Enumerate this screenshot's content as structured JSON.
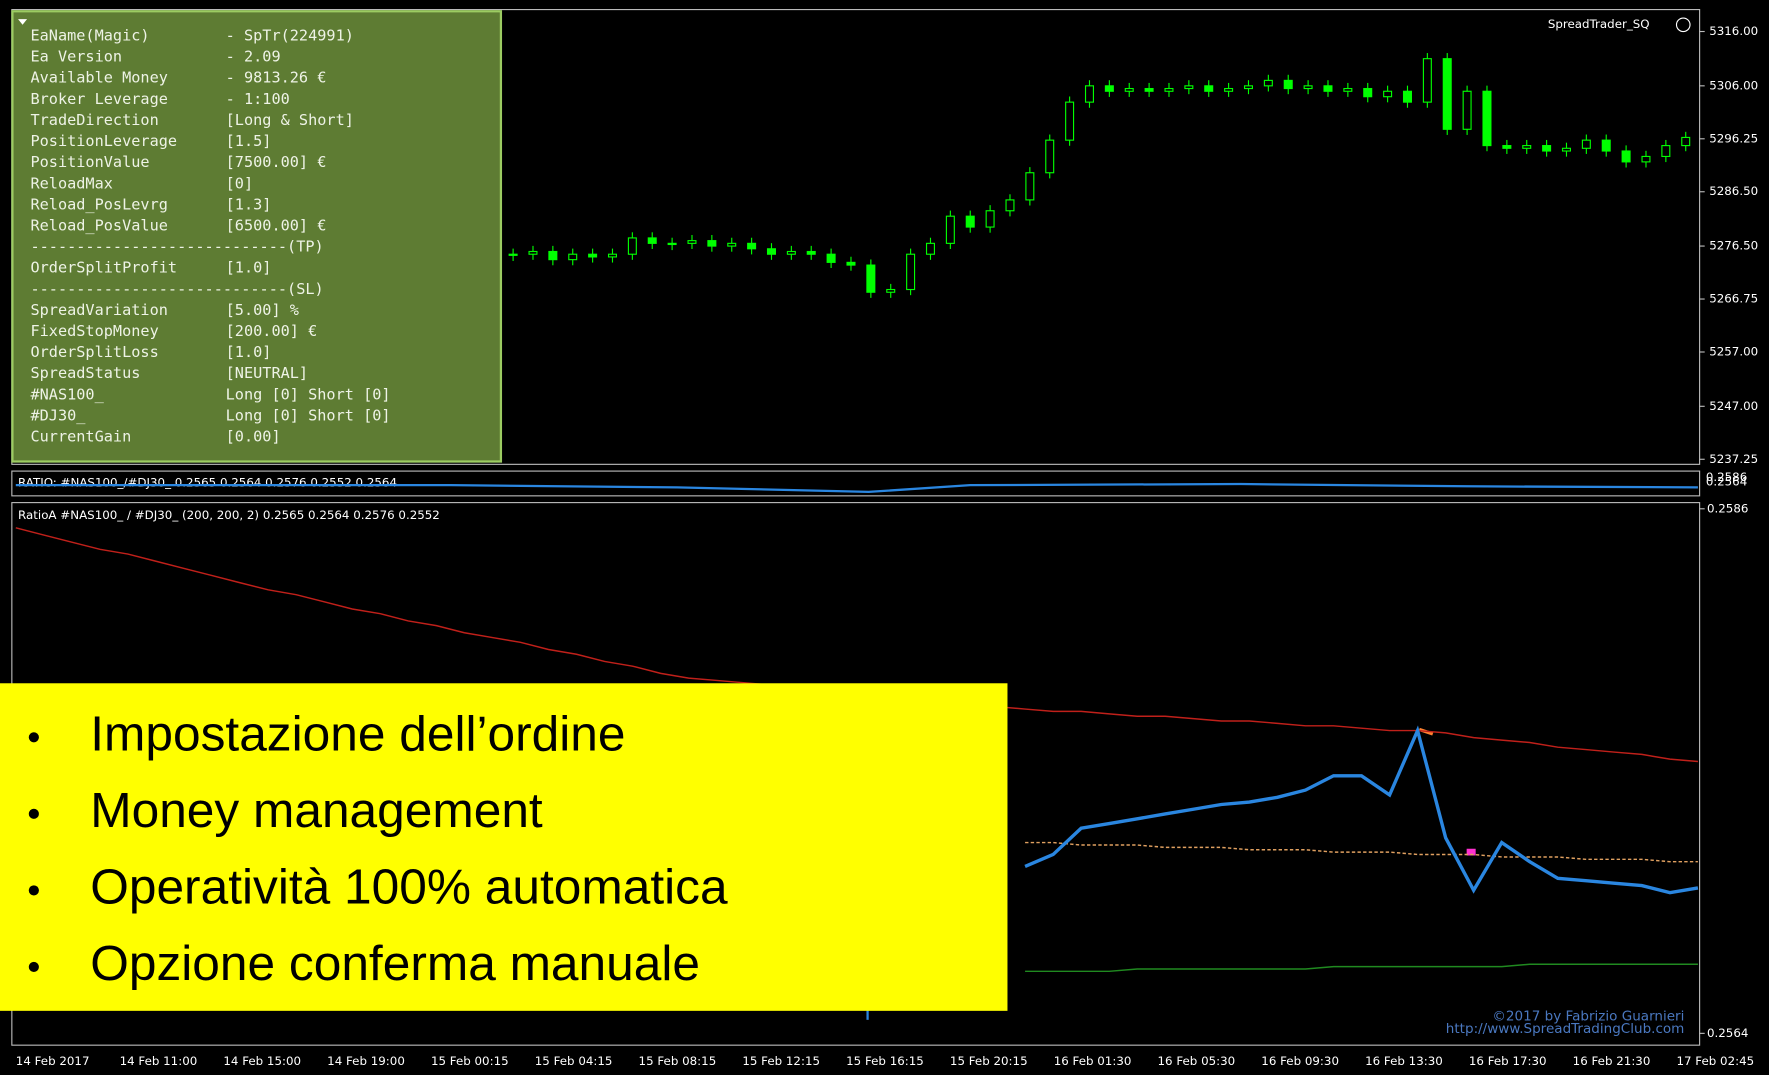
{
  "terminal": {
    "expert_label": "SpreadTrader_SQ",
    "info_panel": {
      "rows": [
        [
          "EaName(Magic)",
          "- SpTr(224991)"
        ],
        [
          "Ea Version",
          "- 2.09"
        ],
        [
          "Available Money",
          "- 9813.26 €"
        ],
        [
          "Broker Leverage",
          "- 1:100"
        ],
        [
          "TradeDirection",
          "[Long & Short]"
        ],
        [
          "PositionLeverage",
          "[1.5]"
        ],
        [
          "PositionValue",
          "[7500.00] €"
        ],
        [
          "ReloadMax",
          "[0]"
        ],
        [
          "Reload_PosLevrg",
          "[1.3]"
        ],
        [
          "Reload_PosValue",
          "[6500.00] €"
        ],
        [
          "----------------------------(TP)"
        ],
        [
          "OrderSplitProfit",
          "[1.0]"
        ],
        [
          "----------------------------(SL)"
        ],
        [
          "SpreadVariation",
          "[5.00] %"
        ],
        [
          "FixedStopMoney",
          "[200.00] €"
        ],
        [
          "OrderSplitLoss",
          "[1.0]"
        ],
        [
          "SpreadStatus",
          "[NEUTRAL]"
        ],
        [
          "#NAS100_",
          "Long [0]  Short [0]"
        ],
        [
          "#DJ30_",
          "Long [0]  Short [0]"
        ],
        [
          "CurrentGain",
          "[0.00]"
        ]
      ]
    },
    "price_chart": {
      "type": "candlestick",
      "ylim": [
        5237.25,
        5316
      ],
      "yticks": [
        {
          "value": 5316,
          "label": "5316.00"
        },
        {
          "value": 5306,
          "label": "5306.00"
        },
        {
          "value": 5296.25,
          "label": "5296.25"
        },
        {
          "value": 5286.5,
          "label": "5286.50"
        },
        {
          "value": 5276.5,
          "label": "5276.50"
        },
        {
          "value": 5266.75,
          "label": "5266.75"
        },
        {
          "value": 5257,
          "label": "5257.00"
        },
        {
          "value": 5247,
          "label": "5247.00"
        },
        {
          "value": 5237.25,
          "label": "5237.25"
        }
      ],
      "color": "#00ff00",
      "closes": [
        5275,
        5275.5,
        5274,
        5275,
        5274.5,
        5275,
        5278,
        5277,
        5277,
        5277.5,
        5276.5,
        5277,
        5276,
        5275,
        5275.5,
        5275,
        5273.5,
        5273,
        5268,
        5268.5,
        5275,
        5277,
        5282,
        5280,
        5283,
        5285,
        5290,
        5296,
        5303,
        5306,
        5305,
        5305.5,
        5305,
        5305.5,
        5306,
        5305,
        5305.5,
        5306,
        5307,
        5305.5,
        5306,
        5305,
        5305.5,
        5304,
        5305,
        5303,
        5311,
        5298,
        5305,
        5295,
        5294.5,
        5295,
        5294,
        5294.5,
        5296,
        5294,
        5292,
        5293,
        5295,
        5296.5
      ]
    },
    "ratio_strip": {
      "label": "RATIO: #NAS100_/#DJ30_ 0.2565 0.2564 0.2576 0.2552 0.2564",
      "yticks": [
        0.2586,
        0.2564
      ]
    },
    "ratio_chart": {
      "type": "line",
      "label": "RatioA #NAS100_ / #DJ30_ (200, 200, 2) 0.2565 0.2564 0.2576 0.2552",
      "ylim": [
        0.2564,
        0.2586
      ],
      "yticks": [
        0.2586,
        0.2564
      ],
      "series": [
        {
          "color": "#c0201a",
          "values": [
            0.25852,
            0.25849,
            0.25846,
            0.25843,
            0.25841,
            0.25838,
            0.25835,
            0.25832,
            0.25829,
            0.25826,
            0.25824,
            0.25821,
            0.25818,
            0.25816,
            0.25813,
            0.25811,
            0.25808,
            0.25806,
            0.25804,
            0.25801,
            0.25799,
            0.25796,
            0.25794,
            0.25791,
            0.25789,
            0.25788,
            0.25787,
            0.25786,
            0.25785,
            0.25784,
            0.25782,
            0.25781,
            0.2578,
            0.25779,
            0.25778,
            0.25777,
            0.25776,
            0.25775,
            0.25775,
            0.25774,
            0.25773,
            0.25773,
            0.25772,
            0.25771,
            0.25771,
            0.2577,
            0.25769,
            0.25769,
            0.25768,
            0.25767,
            0.25767,
            0.25766,
            0.25764,
            0.25763,
            0.25762,
            0.2576,
            0.25759,
            0.25758,
            0.25757,
            0.25755,
            0.25754
          ]
        },
        {
          "color": "#e0a060",
          "dashed": true,
          "values": [
            null,
            null,
            null,
            null,
            null,
            null,
            null,
            null,
            null,
            null,
            null,
            null,
            null,
            null,
            null,
            null,
            null,
            null,
            null,
            null,
            null,
            null,
            null,
            null,
            null,
            null,
            null,
            null,
            null,
            null,
            null,
            null,
            null,
            null,
            null,
            null,
            0.2572,
            0.2572,
            0.25719,
            0.25719,
            0.25719,
            0.25718,
            0.25718,
            0.25718,
            0.25717,
            0.25717,
            0.25717,
            0.25716,
            0.25716,
            0.25716,
            0.25715,
            0.25715,
            0.25715,
            0.25714,
            0.25714,
            0.25714,
            0.25713,
            0.25713,
            0.25713,
            0.25712,
            0.25712
          ]
        },
        {
          "color": "#208a20",
          "values": [
            null,
            null,
            null,
            null,
            null,
            null,
            null,
            null,
            null,
            null,
            null,
            null,
            null,
            null,
            null,
            null,
            null,
            null,
            null,
            null,
            null,
            null,
            null,
            null,
            null,
            null,
            null,
            null,
            null,
            null,
            null,
            null,
            null,
            null,
            null,
            null,
            0.25666,
            0.25666,
            0.25666,
            0.25666,
            0.25667,
            0.25667,
            0.25667,
            0.25667,
            0.25667,
            0.25667,
            0.25667,
            0.25668,
            0.25668,
            0.25668,
            0.25668,
            0.25668,
            0.25668,
            0.25668,
            0.25669,
            0.25669,
            0.25669,
            0.25669,
            0.25669,
            0.25669,
            0.25669
          ]
        },
        {
          "color": "#2a86e0",
          "values": [
            null,
            null,
            null,
            null,
            null,
            null,
            null,
            null,
            null,
            null,
            null,
            null,
            null,
            null,
            null,
            null,
            null,
            null,
            null,
            null,
            null,
            null,
            null,
            null,
            null,
            null,
            null,
            null,
            null,
            null,
            null,
            null,
            null,
            null,
            null,
            null,
            0.2571,
            0.25715,
            0.25726,
            0.25728,
            0.2573,
            0.25732,
            0.25734,
            0.25736,
            0.25737,
            0.25739,
            0.25742,
            0.25748,
            0.25748,
            0.2574,
            0.25767,
            0.25722,
            0.257,
            0.2572,
            0.25712,
            0.25705,
            0.25704,
            0.25703,
            0.25702,
            0.25699,
            0.25701
          ]
        }
      ]
    },
    "time_axis": [
      "14 Feb 2017",
      "14 Feb 11:00",
      "14 Feb 15:00",
      "14 Feb 19:00",
      "15 Feb 00:15",
      "15 Feb 04:15",
      "15 Feb 08:15",
      "15 Feb 12:15",
      "15 Feb 16:15",
      "15 Feb 20:15",
      "16 Feb 01:30",
      "16 Feb 05:30",
      "16 Feb 09:30",
      "16 Feb 13:30",
      "16 Feb 17:30",
      "16 Feb 21:30",
      "17 Feb 02:45"
    ],
    "copyright": [
      "©2017 by Fabrizio Guarnieri",
      "http://www.SpreadTradingClub.com"
    ]
  },
  "overlay": {
    "bullets": [
      "Impostazione dell’ordine",
      "Money management",
      "Operatività 100% automatica",
      "Opzione conferma manuale"
    ]
  }
}
